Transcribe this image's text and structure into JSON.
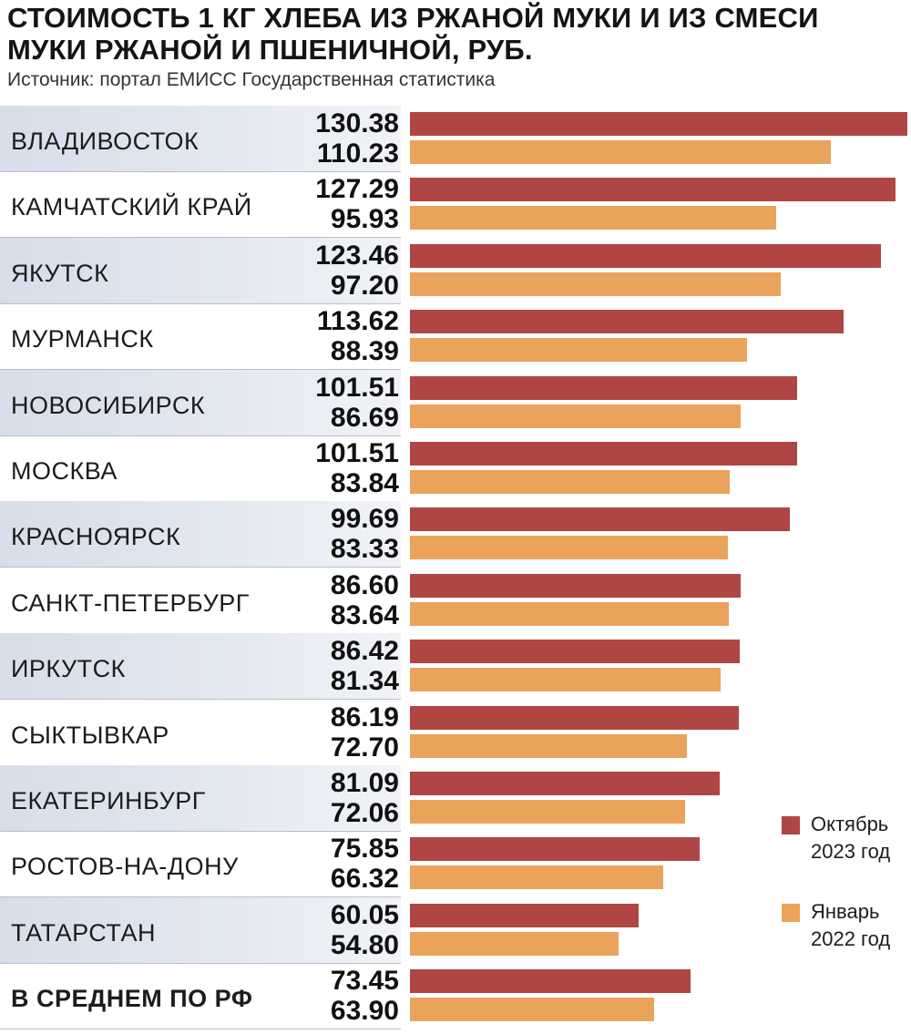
{
  "title": "СТОИМОСТЬ 1 КГ ХЛЕБА ИЗ РЖАНОЙ МУКИ И ИЗ СМЕСИ МУКИ РЖАНОЙ И ПШЕНИЧНОЙ, РУБ.",
  "source": "Источник: портал ЕМИСС Государственная статистика",
  "colors": {
    "oct2023": "#b04644",
    "jan2022": "#eaa35a",
    "shade": "#dde3ec"
  },
  "chart_data": {
    "type": "bar",
    "orientation": "horizontal",
    "title": "СТОИМОСТЬ 1 КГ ХЛЕБА ИЗ РЖАНОЙ МУКИ И ИЗ СМЕСИ МУКИ РЖАНОЙ И ПШЕНИЧНОЙ, РУБ.",
    "categories": [
      "ВЛАДИВОСТОК",
      "КАМЧАТСКИЙ КРАЙ",
      "ЯКУТСК",
      "МУРМАНСК",
      "НОВОСИБИРСК",
      "МОСКВА",
      "КРАСНОЯРСК",
      "САНКТ-ПЕТЕРБУРГ",
      "ИРКУТСК",
      "СЫКТЫВКАР",
      "ЕКАТЕРИНБУРГ",
      "РОСТОВ-НА-ДОНУ",
      "ТАТАРСТАН",
      "В СРЕДНЕМ ПО РФ"
    ],
    "series": [
      {
        "name": "Октябрь 2023 год",
        "values": [
          "130.38",
          "127.29",
          "123.46",
          "113.62",
          "101.51",
          "101.51",
          "99.69",
          "86.60",
          "86.42",
          "86.19",
          "81.09",
          "75.85",
          "60.05",
          "73.45"
        ]
      },
      {
        "name": "Январь 2022 год",
        "values": [
          "110.23",
          "95.93",
          "97.20",
          "88.39",
          "86.69",
          "83.84",
          "83.33",
          "83.64",
          "81.34",
          "72.70",
          "72.06",
          "66.32",
          "54.80",
          "63.90"
        ]
      }
    ],
    "legend": {
      "position": "right",
      "items": [
        {
          "label": "Октябрь\n2023 год"
        },
        {
          "label": "Январь\n2022 год"
        }
      ]
    }
  }
}
